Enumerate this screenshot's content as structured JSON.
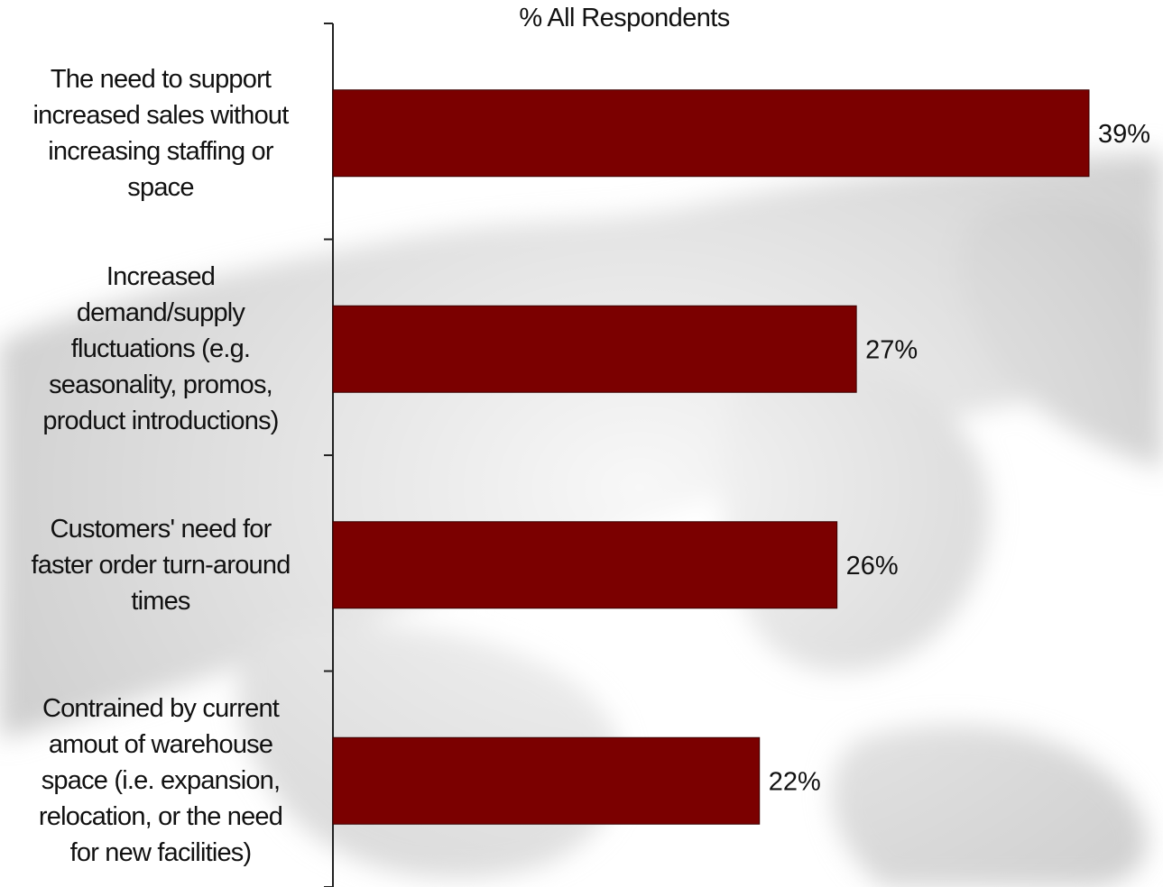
{
  "chart_data": {
    "type": "bar",
    "orientation": "horizontal",
    "title": "% All Respondents",
    "categories": [
      "The need to support increased sales without increasing staffing or space",
      "Increased demand/supply fluctuations (e.g. seasonality, promos, product introductions)",
      "Customers' need for faster order turn-around times",
      "Contrained by current amout of warehouse space (i.e. expansion, relocation, or the need for new facilities)"
    ],
    "category_lines": [
      [
        "The need to support",
        "increased sales without",
        "increasing staffing or",
        "space"
      ],
      [
        "Increased",
        "demand/supply",
        "fluctuations (e.g.",
        "seasonality, promos,",
        "product introductions)"
      ],
      [
        "Customers' need for",
        "faster order turn-around",
        "times"
      ],
      [
        "Contrained by current",
        "amout of warehouse",
        "space (i.e. expansion,",
        "relocation, or the need",
        "for new facilities)"
      ]
    ],
    "values": [
      39,
      27,
      26,
      22
    ],
    "value_labels": [
      "39%",
      "27%",
      "26%",
      "22%"
    ],
    "xlim": [
      0,
      39
    ],
    "grid": false,
    "legend": "none",
    "bar_color": "#7b0000"
  }
}
